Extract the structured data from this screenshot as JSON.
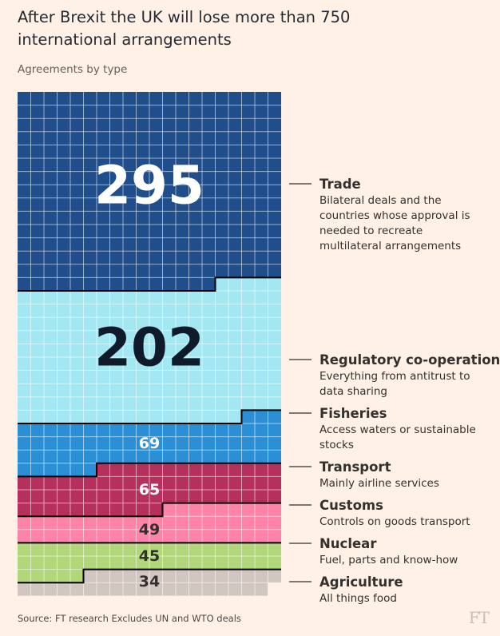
{
  "title": "After Brexit the UK will lose more than 750 international arrangements",
  "subtitle": "Agreements by type",
  "footer": {
    "source": "Source: FT research    Excludes UN and WTO deals",
    "logo": "FT"
  },
  "chart_data": {
    "type": "waffle",
    "title": "After Brexit the UK will lose more than 750 international arrangements",
    "subtitle": "Agreements by type",
    "unit": "agreements",
    "columns": 20,
    "categories": [
      {
        "name": "Trade",
        "value": 295,
        "description": "Bilateral deals and the countries whose approval\n is needed to recreate multilateral arrangements",
        "color": "#204e8a",
        "text_color": "#ffffff"
      },
      {
        "name": "Regulatory co-operation",
        "value": 202,
        "description": "Everything from antitrust to data sharing",
        "color": "#a3e7f2",
        "text_color": "#0f1b2b"
      },
      {
        "name": "Fisheries",
        "value": 69,
        "description": "Access waters or sustainable stocks",
        "color": "#2a8fd4",
        "text_color": "#ffffff"
      },
      {
        "name": "Transport",
        "value": 65,
        "description": "Mainly airline services",
        "color": "#b5305c",
        "text_color": "#ffffff"
      },
      {
        "name": "Customs",
        "value": 49,
        "description": "Controls on goods transport",
        "color": "#ff82a8",
        "text_color": "#33302e"
      },
      {
        "name": "Nuclear",
        "value": 45,
        "description": "Fuel, parts and know-how",
        "color": "#b2d67a",
        "text_color": "#33302e"
      },
      {
        "name": "Agriculture",
        "value": 34,
        "description": "All things food",
        "color": "#d2c6c0",
        "text_color": "#33302e"
      }
    ]
  }
}
